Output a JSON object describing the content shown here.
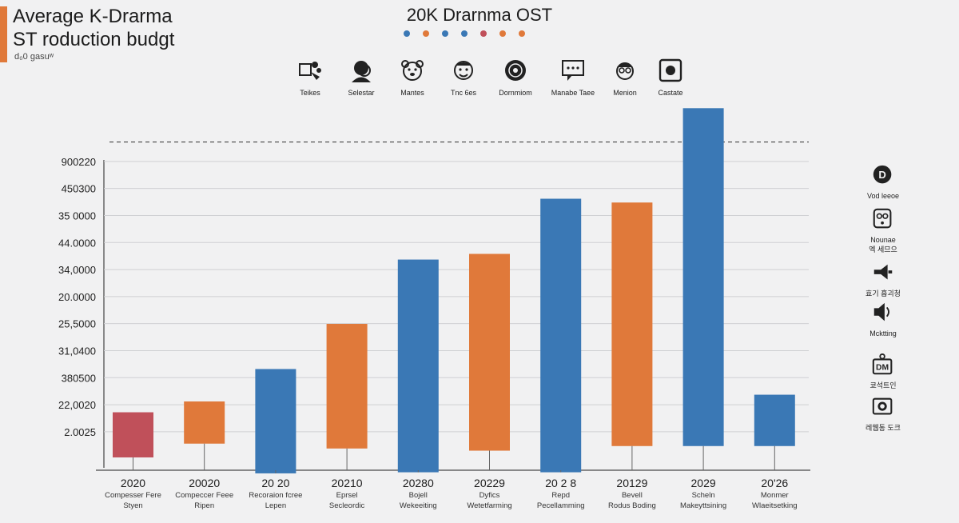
{
  "header": {
    "title_line1": "Average K-Drarma",
    "title_line2": "ST roduction budgt",
    "title_line3": "d₀0 gasuʷ",
    "center_title": "20K Drarnma OST",
    "dot_colors": [
      "#3a78b5",
      "#e0793a",
      "#3a78b5",
      "#3a78b5",
      "#c0505a",
      "#e0793a",
      "#e0793a"
    ],
    "accent_color": "#e0793a"
  },
  "top_icons": [
    {
      "label": "Teikes",
      "icon": "film-projector-icon"
    },
    {
      "label": "Selestar",
      "icon": "person-face-icon"
    },
    {
      "label": "Mantes",
      "icon": "bear-face-icon"
    },
    {
      "label": "Tnc 6es",
      "icon": "smiling-face-icon"
    },
    {
      "label": "Dornmiom",
      "icon": "vinyl-disc-icon"
    },
    {
      "label": "Manabe Taee",
      "icon": "message-screen-icon"
    },
    {
      "label": "Menion",
      "icon": "glasses-face-icon"
    },
    {
      "label": "Castate",
      "icon": "record-square-icon"
    }
  ],
  "side_icons": [
    {
      "label1": "Vod leeoe",
      "label2": "",
      "icon": "d-circle-icon"
    },
    {
      "label1": "Nounae",
      "label2": "엑 세므으",
      "icon": "speaker-box-icon"
    },
    {
      "label1": "효기 흡괴청",
      "label2": "",
      "icon": "megaphone-icon"
    },
    {
      "label1": "Mcktting",
      "label2": "",
      "icon": "loudspeaker-icon"
    },
    {
      "label1": "쿄석트인",
      "label2": "",
      "icon": "dm-pin-icon"
    },
    {
      "label1": "레웹동 도크",
      "label2": "",
      "icon": "camera-box-icon"
    }
  ],
  "chart_data": {
    "type": "bar",
    "title": "20K Drarnma OST",
    "y_tick_labels": [
      "900220",
      "450300",
      "35 0000",
      "44.0000",
      "34,0000",
      "20.0000",
      "25,5000",
      "31,0400",
      "380500",
      "22,0020",
      "2.0025"
    ],
    "categories": [
      {
        "year": "2020",
        "line1": "Compesser Fere",
        "line2": "Styen"
      },
      {
        "year": "20020",
        "line1": "Compeccer Feee",
        "line2": "Ripen"
      },
      {
        "year": "20 20",
        "line1": "Recoraion fcree",
        "line2": "Lepen"
      },
      {
        "year": "20210",
        "line1": "Eprsel",
        "line2": "Secleordic"
      },
      {
        "year": "20280",
        "line1": "Bojell",
        "line2": "Wekeeiting"
      },
      {
        "year": "20229",
        "line1": "Dyfics",
        "line2": "Wetetfarming"
      },
      {
        "year": "20 2 8",
        "line1": "Repd",
        "line2": "Pecellamming"
      },
      {
        "year": "20129",
        "line1": "Bevell",
        "line2": "Rodus Boding"
      },
      {
        "year": "2029",
        "line1": "Scheln",
        "line2": "Makeyttsining"
      },
      {
        "year": "20'26",
        "line1": "Monmer",
        "line2": "Wlaeitsetking"
      }
    ],
    "bars": [
      {
        "top": 1.7,
        "bottom": 0.03,
        "color": "#c0505a"
      },
      {
        "top": 2.1,
        "bottom": 0.54,
        "color": "#e0793a"
      },
      {
        "top": 3.3,
        "bottom": -0.56,
        "color": "#3a78b5"
      },
      {
        "top": 4.97,
        "bottom": 0.36,
        "color": "#e0793a"
      },
      {
        "top": 7.35,
        "bottom": -0.52,
        "color": "#3a78b5"
      },
      {
        "top": 7.56,
        "bottom": 0.28,
        "color": "#e0793a"
      },
      {
        "top": 9.6,
        "bottom": -0.52,
        "color": "#3a78b5"
      },
      {
        "top": 9.46,
        "bottom": 0.45,
        "color": "#e0793a"
      },
      {
        "top": 12.95,
        "bottom": 0.45,
        "color": "#3a78b5"
      },
      {
        "top": 2.35,
        "bottom": 0.45,
        "color": "#3a78b5"
      }
    ],
    "reference_line": 11.7,
    "ylim": [
      -0.6,
      13
    ],
    "grid": true,
    "legend": "none"
  }
}
